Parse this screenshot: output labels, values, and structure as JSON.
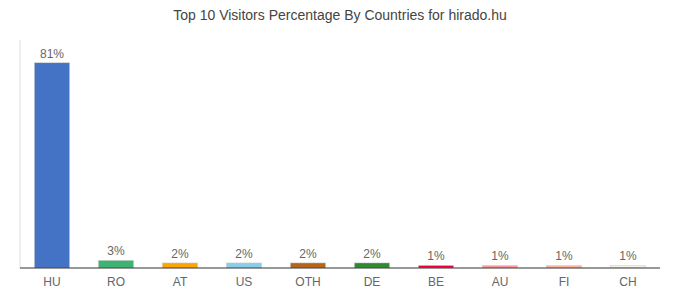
{
  "chart_data": {
    "type": "bar",
    "title": "Top 10 Visitors Percentage By Countries for hirado.hu",
    "categories": [
      "HU",
      "RO",
      "AT",
      "US",
      "OTH",
      "DE",
      "BE",
      "AU",
      "FI",
      "CH"
    ],
    "values": [
      81,
      3,
      2,
      2,
      2,
      2,
      1,
      1,
      1,
      1
    ],
    "value_labels": [
      "81%",
      "3%",
      "2%",
      "2%",
      "2%",
      "2%",
      "1%",
      "1%",
      "1%",
      "1%"
    ],
    "colors": [
      "#4472c4",
      "#3cb371",
      "#ffa500",
      "#87ceeb",
      "#b8651a",
      "#2e8b2e",
      "#e8003d",
      "#ff9999",
      "#ffb6a0",
      "#f5f0e8"
    ],
    "ylim": [
      0,
      90
    ],
    "grid": false,
    "data_labels": true,
    "tick_labels": "x"
  }
}
